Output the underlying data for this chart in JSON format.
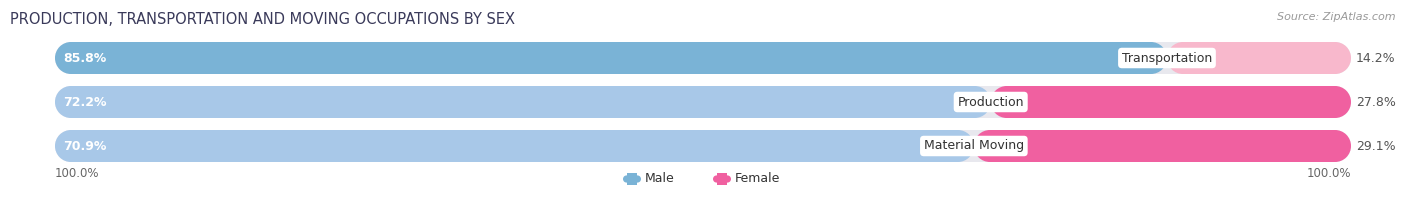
{
  "title": "PRODUCTION, TRANSPORTATION AND MOVING OCCUPATIONS BY SEX",
  "source_text": "Source: ZipAtlas.com",
  "categories": [
    "Transportation",
    "Production",
    "Material Moving"
  ],
  "male_values": [
    85.8,
    72.2,
    70.9
  ],
  "female_values": [
    14.2,
    27.8,
    29.1
  ],
  "male_color_top": "#7bafd4",
  "male_color_mid": "#a8c8e8",
  "male_color_bot": "#a8c8e8",
  "female_color_top": "#f8b8cc",
  "female_color_mid": "#f060a0",
  "female_color_bot": "#f060a0",
  "male_colors": [
    "#7ab3d6",
    "#a8c8e8",
    "#a8c8e8"
  ],
  "female_colors": [
    "#f8b8cc",
    "#f060a0",
    "#f060a0"
  ],
  "male_label": "Male",
  "female_label": "Female",
  "background_color": "#ffffff",
  "bar_bg_color": "#e8e8ee",
  "axis_label_100_left": "100.0%",
  "axis_label_100_right": "100.0%"
}
